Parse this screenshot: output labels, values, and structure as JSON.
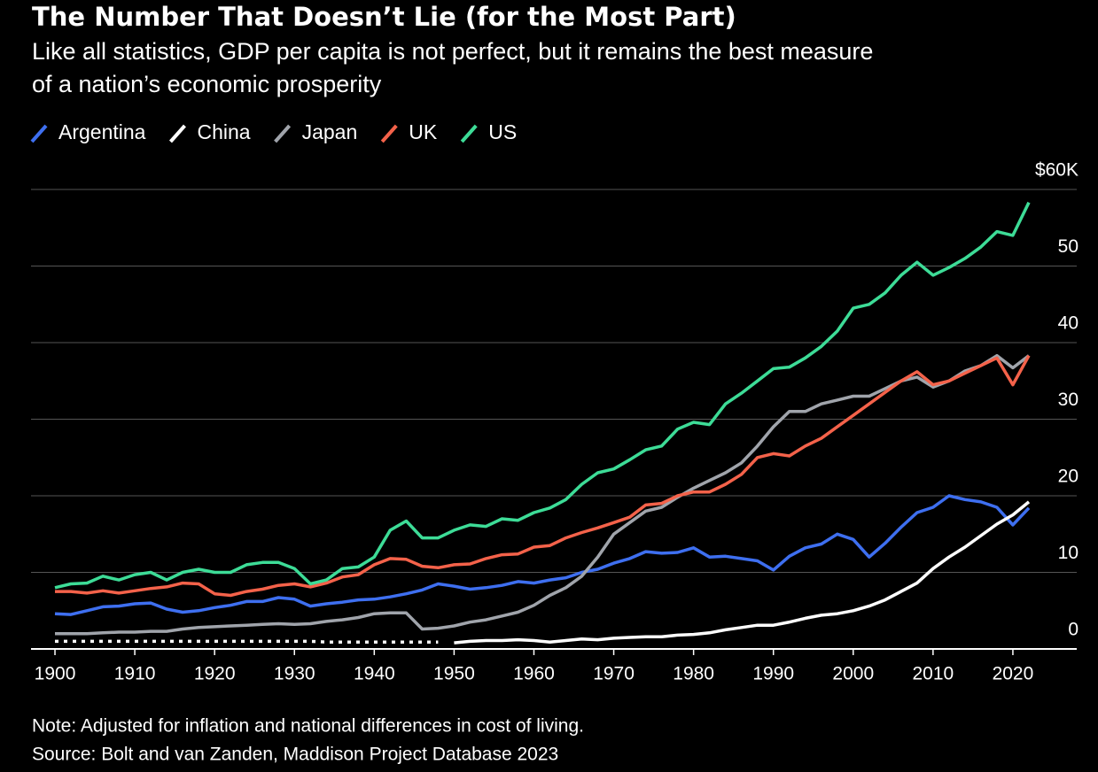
{
  "chart_data": {
    "type": "line",
    "title": "The Number That Doesn’t Lie (for the Most Part)",
    "subtitle": [
      "Like all statistics, GDP per capita is not perfect, but it remains the best measure",
      "of a nation’s economic prosperity"
    ],
    "note": "Note: Adjusted for inflation and national differences in cost of living.",
    "source": "Source: Bolt and van Zanden, Maddison Project Database 2023",
    "x": [
      1900,
      1902,
      1904,
      1906,
      1908,
      1910,
      1912,
      1914,
      1916,
      1918,
      1920,
      1922,
      1924,
      1926,
      1928,
      1930,
      1932,
      1934,
      1936,
      1938,
      1940,
      1942,
      1944,
      1946,
      1948,
      1950,
      1952,
      1954,
      1956,
      1958,
      1960,
      1962,
      1964,
      1966,
      1968,
      1970,
      1972,
      1974,
      1976,
      1978,
      1980,
      1982,
      1984,
      1986,
      1988,
      1990,
      1992,
      1994,
      1996,
      1998,
      2000,
      2002,
      2004,
      2006,
      2008,
      2010,
      2012,
      2014,
      2016,
      2018,
      2020,
      2022
    ],
    "xlim": [
      1897,
      2028
    ],
    "xticks": [
      1900,
      1910,
      1920,
      1930,
      1940,
      1950,
      1960,
      1970,
      1980,
      1990,
      2000,
      2010,
      2020
    ],
    "ylim": [
      0,
      60
    ],
    "yticks": [
      0,
      10,
      20,
      30,
      40,
      50,
      {
        "value": 60,
        "label": "$60K"
      }
    ],
    "grid": true,
    "series": [
      {
        "name": "Argentina",
        "color": "#3e6ff0",
        "values": [
          4.6,
          4.5,
          5,
          5.5,
          5.6,
          5.9,
          6,
          5.2,
          4.8,
          5,
          5.4,
          5.7,
          6.2,
          6.2,
          6.7,
          6.5,
          5.6,
          5.9,
          6.1,
          6.4,
          6.5,
          6.8,
          7.2,
          7.7,
          8.5,
          8.2,
          7.8,
          8,
          8.3,
          8.8,
          8.6,
          9,
          9.3,
          10,
          10.4,
          11.2,
          11.8,
          12.7,
          12.5,
          12.6,
          13.2,
          12,
          12.1,
          11.8,
          11.5,
          10.3,
          12.1,
          13.2,
          13.7,
          15,
          14.3,
          12,
          13.8,
          15.9,
          17.8,
          18.5,
          20,
          19.5,
          19.2,
          18.5,
          16.2,
          18.4
        ]
      },
      {
        "name": "China",
        "color": "#ffffff",
        "dashed_before": 1950,
        "values": [
          1,
          1,
          1,
          1,
          1,
          1,
          1,
          1,
          1,
          1,
          1,
          1,
          1,
          1,
          1,
          1,
          1,
          0.9,
          0.9,
          0.9,
          0.9,
          0.9,
          0.9,
          0.9,
          0.9,
          0.8,
          1,
          1.1,
          1.1,
          1.2,
          1.1,
          0.9,
          1.1,
          1.3,
          1.2,
          1.4,
          1.5,
          1.6,
          1.6,
          1.8,
          1.9,
          2.1,
          2.5,
          2.8,
          3.1,
          3.1,
          3.5,
          4,
          4.4,
          4.6,
          5,
          5.6,
          6.4,
          7.5,
          8.6,
          10.5,
          12,
          13.3,
          14.8,
          16.3,
          17.5,
          19.2
        ]
      },
      {
        "name": "Japan",
        "color": "#a0a4ab",
        "values": [
          2,
          2,
          2,
          2.1,
          2.2,
          2.2,
          2.3,
          2.3,
          2.6,
          2.8,
          2.9,
          3,
          3.1,
          3.2,
          3.3,
          3.2,
          3.3,
          3.6,
          3.8,
          4.1,
          4.6,
          4.7,
          4.7,
          2.6,
          2.7,
          3,
          3.5,
          3.8,
          4.3,
          4.8,
          5.7,
          7,
          8,
          9.5,
          12,
          15,
          16.5,
          18,
          18.5,
          19.8,
          21,
          22,
          23,
          24.3,
          26.5,
          29,
          31,
          31,
          32,
          32.5,
          33,
          33,
          34,
          35,
          35.5,
          34.2,
          35,
          36.3,
          37,
          38.3,
          36.7,
          38.3
        ]
      },
      {
        "name": "UK",
        "color": "#f4624a",
        "values": [
          7.5,
          7.5,
          7.3,
          7.6,
          7.3,
          7.6,
          7.9,
          8.1,
          8.6,
          8.5,
          7.2,
          7,
          7.5,
          7.8,
          8.3,
          8.5,
          8.1,
          8.6,
          9.4,
          9.7,
          11,
          11.8,
          11.7,
          10.8,
          10.6,
          11,
          11.1,
          11.8,
          12.3,
          12.4,
          13.3,
          13.5,
          14.5,
          15.2,
          15.8,
          16.5,
          17.2,
          18.8,
          19,
          20,
          20.5,
          20.5,
          21.5,
          22.8,
          25,
          25.5,
          25.2,
          26.5,
          27.5,
          29,
          30.5,
          32,
          33.5,
          35,
          36.2,
          34.5,
          35,
          36,
          37,
          38,
          34.5,
          38.3
        ]
      },
      {
        "name": "US",
        "color": "#3ddc97",
        "values": [
          8,
          8.5,
          8.6,
          9.5,
          9,
          9.7,
          10,
          9,
          10,
          10.4,
          10,
          10,
          11,
          11.3,
          11.3,
          10.5,
          8.5,
          9,
          10.5,
          10.7,
          12,
          15.5,
          16.7,
          14.5,
          14.5,
          15.5,
          16.2,
          16,
          17,
          16.8,
          17.8,
          18.4,
          19.5,
          21.5,
          23,
          23.5,
          24.7,
          26,
          26.5,
          28.7,
          29.6,
          29.3,
          32,
          33.4,
          35,
          36.6,
          36.8,
          38,
          39.5,
          41.5,
          44.5,
          45,
          46.5,
          48.8,
          50.5,
          48.8,
          49.8,
          51,
          52.5,
          54.5,
          54,
          58.3
        ]
      }
    ]
  }
}
